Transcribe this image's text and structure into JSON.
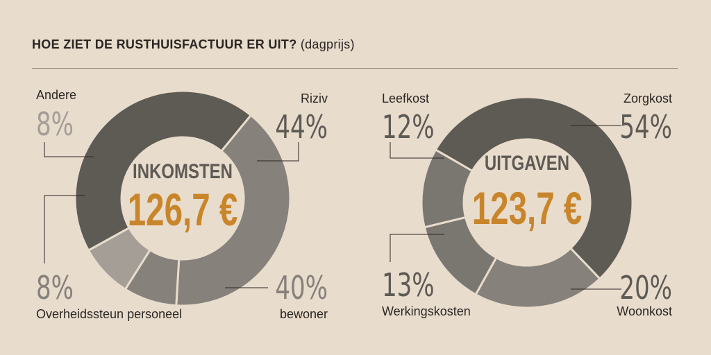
{
  "title": {
    "main": "HOE ZIET DE RUSTHUISFACTUUR ER UIT?",
    "sub": "(dagprijs)"
  },
  "colors": {
    "background": "#e8dccd",
    "accent": "#c8852a",
    "dark": "#5e5a54",
    "medium": "#86817a",
    "light": "#a59e96",
    "gap": "#e8dccd"
  },
  "chart_data": [
    {
      "type": "donut",
      "center_label": "INKOMSTEN",
      "total": "126,7 €",
      "series": [
        {
          "label": "Riziv",
          "value": 44,
          "display": "44%"
        },
        {
          "label": "bewoner",
          "value": 40,
          "display": "40%"
        },
        {
          "label": "Overheidssteun personeel",
          "value": 8,
          "display": "8%"
        },
        {
          "label": "Andere",
          "value": 8,
          "display": "8%"
        }
      ]
    },
    {
      "type": "donut",
      "center_label": "UITGAVEN",
      "total": "123,7 €",
      "series": [
        {
          "label": "Zorgkost",
          "value": 54,
          "display": "54%"
        },
        {
          "label": "Woonkost",
          "value": 20,
          "display": "20%"
        },
        {
          "label": "Werkingskosten",
          "value": 13,
          "display": "13%"
        },
        {
          "label": "Leefkost",
          "value": 12,
          "display": "12%"
        }
      ]
    }
  ]
}
